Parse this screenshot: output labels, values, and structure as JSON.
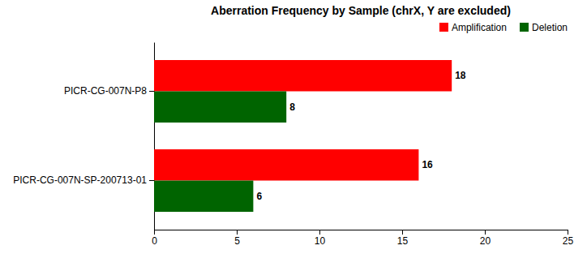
{
  "chart_data": {
    "type": "bar",
    "orientation": "horizontal",
    "title": "Aberration Frequency by Sample (chrX, Y are excluded)",
    "categories": [
      "PICR-CG-007N-P8",
      "PICR-CG-007N-SP-200713-01"
    ],
    "series": [
      {
        "name": "Amplification",
        "color": "#FF0000",
        "values": [
          18,
          16
        ]
      },
      {
        "name": "Deletion",
        "color": "#006400",
        "values": [
          8,
          6
        ]
      }
    ],
    "xlim": [
      0,
      25
    ],
    "xticks": [
      0,
      5,
      10,
      15,
      20,
      25
    ],
    "data_labels": true,
    "legend": "upper right"
  }
}
